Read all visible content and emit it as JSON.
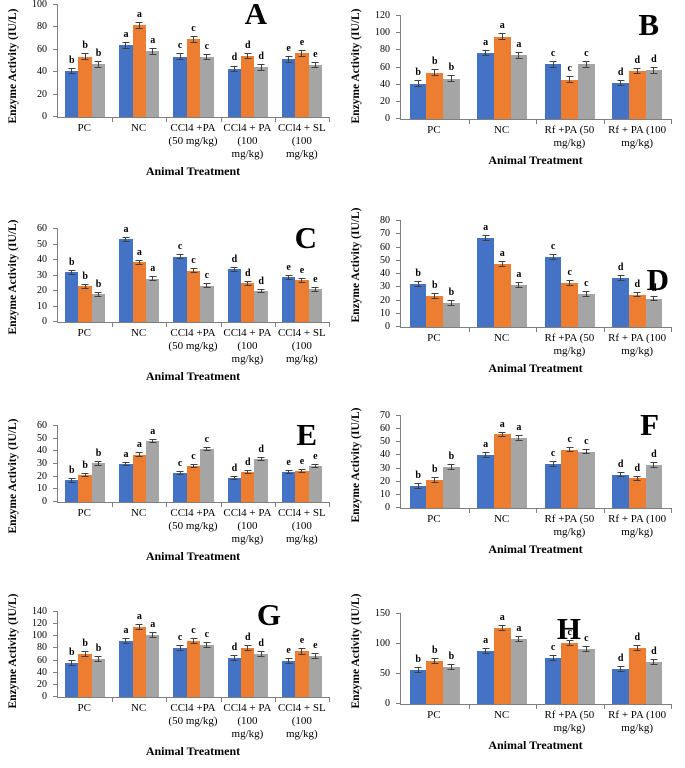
{
  "figure": {
    "series_colors": {
      "blue": "#4472C4",
      "orange": "#ED7D31",
      "gray": "#A5A5A5"
    },
    "error_bar_color": "#404040",
    "axis_color": "#7f7f7f"
  },
  "chart_data": [
    {
      "type": "bar",
      "panel": "A",
      "ylabel": "Enzyme Activity (IU/L)",
      "xlabel": "Animal Treatment",
      "ylim": [
        0,
        100
      ],
      "yticks": [
        0,
        20,
        40,
        60,
        80,
        100
      ],
      "error": 3,
      "categories": [
        "PC",
        "NC",
        "CCl4 +PA (50 mg/kg)",
        "CCl4 + PA (100 mg/kg)",
        "CCl4 + SL (100 mg/kg)"
      ],
      "sig_letters": [
        "b",
        "a",
        "c",
        "d",
        "e"
      ],
      "series": [
        {
          "name": "blue",
          "color": "#4472C4",
          "values": [
            41,
            64,
            54,
            43,
            51.5
          ]
        },
        {
          "name": "orange",
          "color": "#ED7D31",
          "values": [
            54,
            82,
            69.5,
            54.5,
            57
          ]
        },
        {
          "name": "gray",
          "color": "#A5A5A5",
          "values": [
            47,
            58.5,
            53.5,
            44.5,
            46.5
          ]
        }
      ]
    },
    {
      "type": "bar",
      "panel": "B",
      "ylabel": "Enzyme Activity (IU/L)",
      "xlabel": "Animal Treatment",
      "ylim": [
        0,
        120
      ],
      "yticks": [
        0,
        20,
        40,
        60,
        80,
        100,
        120
      ],
      "error": 4,
      "categories": [
        "PC",
        "NC",
        "Rf +PA (50 mg/kg)",
        "Rf +  PA (100 mg/kg)"
      ],
      "sig_letters": [
        "b",
        "a",
        "c",
        "d"
      ],
      "series": [
        {
          "name": "blue",
          "color": "#4472C4",
          "values": [
            41,
            77,
            64,
            42
          ]
        },
        {
          "name": "orange",
          "color": "#ED7D31",
          "values": [
            54,
            96,
            46,
            56
          ]
        },
        {
          "name": "gray",
          "color": "#A5A5A5",
          "values": [
            47,
            74,
            64,
            57
          ]
        }
      ]
    },
    {
      "type": "bar",
      "panel": "C",
      "ylabel": "Enzyme Activity (IU/L)",
      "xlabel": "Animal Treatment",
      "ylim": [
        0,
        60
      ],
      "yticks": [
        0,
        10,
        20,
        30,
        40,
        50,
        60
      ],
      "error": 1.6,
      "categories": [
        "PC",
        "NC",
        "CCl4 +PA (50 mg/kg)",
        "CCl4 +  PA (100 mg/kg)",
        "CCl4 + SL (100 mg/kg)"
      ],
      "sig_letters": [
        "b",
        "a",
        "c",
        "d",
        "e"
      ],
      "series": [
        {
          "name": "blue",
          "color": "#4472C4",
          "values": [
            32,
            53.5,
            42,
            34,
            29
          ]
        },
        {
          "name": "orange",
          "color": "#ED7D31",
          "values": [
            23,
            38.5,
            33,
            25,
            27
          ]
        },
        {
          "name": "gray",
          "color": "#A5A5A5",
          "values": [
            18,
            28,
            23.5,
            20,
            21
          ]
        }
      ]
    },
    {
      "type": "bar",
      "panel": "D",
      "ylabel": "Enzyme Activity (IU/L)",
      "xlabel": "Animal Treatment",
      "ylim": [
        0,
        80
      ],
      "yticks": [
        0,
        10,
        20,
        30,
        40,
        50,
        60,
        70,
        80
      ],
      "error": 2.2,
      "categories": [
        "PC",
        "NC",
        "Rf +PA (50 mg/kg)",
        "Rf +  PA (100 mg/kg)"
      ],
      "sig_letters": [
        "b",
        "a",
        "c",
        "d"
      ],
      "series": [
        {
          "name": "blue",
          "color": "#4472C4",
          "values": [
            32.5,
            67,
            53,
            37
          ]
        },
        {
          "name": "orange",
          "color": "#ED7D31",
          "values": [
            23.5,
            47.5,
            33,
            24.5
          ]
        },
        {
          "name": "gray",
          "color": "#A5A5A5",
          "values": [
            18,
            31.5,
            25,
            21.5
          ]
        }
      ]
    },
    {
      "type": "bar",
      "panel": "E",
      "ylabel": "Enzyme Activity (IU/L)",
      "xlabel": "Animal Treatment",
      "ylim": [
        0,
        60
      ],
      "yticks": [
        0,
        10,
        20,
        30,
        40,
        50,
        60
      ],
      "error": 1.7,
      "categories": [
        "PC",
        "NC",
        "CCl4 +PA (50 mg/kg)",
        "CCl4 + PA (100 mg/kg)",
        "CCl4 + SL (100 mg/kg)"
      ],
      "sig_letters": [
        "b",
        "a",
        "c",
        "d",
        "e"
      ],
      "series": [
        {
          "name": "blue",
          "color": "#4472C4",
          "values": [
            17,
            30,
            23,
            19,
            23.5
          ]
        },
        {
          "name": "orange",
          "color": "#ED7D31",
          "values": [
            21.5,
            37.5,
            28.5,
            23.5,
            24.5
          ]
        },
        {
          "name": "gray",
          "color": "#A5A5A5",
          "values": [
            30.5,
            48,
            42,
            34,
            28.5
          ]
        }
      ]
    },
    {
      "type": "bar",
      "panel": "F",
      "ylabel": "Enzyme Activity (IU/L)",
      "xlabel": "Animal Treatment",
      "ylim": [
        0,
        70
      ],
      "yticks": [
        0,
        10,
        20,
        30,
        40,
        50,
        60,
        70
      ],
      "error": 2.2,
      "categories": [
        "PC",
        "NC",
        "Rf +PA (50 mg/kg)",
        "Rf +  PA (100 mg/kg)"
      ],
      "sig_letters": [
        "b",
        "a",
        "c",
        "d"
      ],
      "series": [
        {
          "name": "blue",
          "color": "#4472C4",
          "values": [
            17,
            40.5,
            33.5,
            25.5
          ]
        },
        {
          "name": "orange",
          "color": "#ED7D31",
          "values": [
            21.5,
            56,
            44.5,
            22.5
          ]
        },
        {
          "name": "gray",
          "color": "#A5A5A5",
          "values": [
            31,
            53.5,
            43,
            32.5
          ]
        }
      ]
    },
    {
      "type": "bar",
      "panel": "G",
      "ylabel": "Enzyme Activity (IU/L)",
      "xlabel": "Animal Treatment",
      "ylim": [
        0,
        140
      ],
      "yticks": [
        0,
        20,
        40,
        60,
        80,
        100,
        120,
        140
      ],
      "error": 5,
      "categories": [
        "PC",
        "NC",
        "CCl4 +PA (50 mg/kg)",
        "CCl4 + PA (100 mg/kg)",
        "CCl4 + SL (100 mg/kg)"
      ],
      "sig_letters": [
        "b",
        "a",
        "c",
        "d",
        "e"
      ],
      "series": [
        {
          "name": "blue",
          "color": "#4472C4",
          "values": [
            56,
            92,
            81,
            64,
            60
          ]
        },
        {
          "name": "orange",
          "color": "#ED7D31",
          "values": [
            71,
            115,
            92,
            81,
            75
          ]
        },
        {
          "name": "gray",
          "color": "#A5A5A5",
          "values": [
            62,
            102,
            86,
            71,
            67
          ]
        }
      ]
    },
    {
      "type": "bar",
      "panel": "H",
      "ylabel": "Enzyme Activity (IU/L)",
      "xlabel": "Animal Treatment",
      "ylim": [
        0,
        150
      ],
      "yticks": [
        0,
        50,
        100,
        150
      ],
      "error": 5,
      "categories": [
        "PC",
        "NC",
        "Rf +PA (50 mg/kg)",
        "Rf +  PA (100 mg/kg)"
      ],
      "sig_letters": [
        "b",
        "a",
        "c",
        "d"
      ],
      "series": [
        {
          "name": "blue",
          "color": "#4472C4",
          "values": [
            56,
            88,
            76,
            58
          ]
        },
        {
          "name": "orange",
          "color": "#ED7D31",
          "values": [
            71,
            127,
            101,
            93
          ]
        },
        {
          "name": "gray",
          "color": "#A5A5A5",
          "values": [
            61,
            108,
            91,
            70
          ]
        }
      ]
    }
  ]
}
